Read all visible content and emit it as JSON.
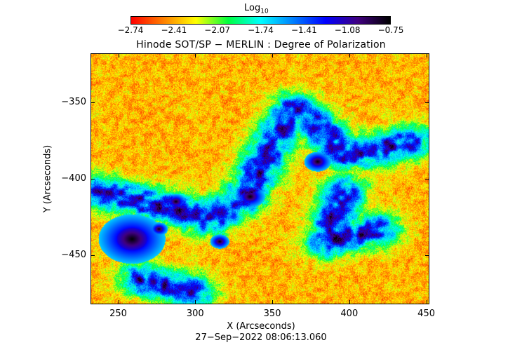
{
  "colorbar": {
    "title": "Log",
    "title_sub": "10",
    "ticks": [
      "-2.74",
      "-2.41",
      "-2.07",
      "-1.74",
      "-1.41",
      "-1.08",
      "-0.75"
    ],
    "colors": [
      "#ff0000",
      "#ff8000",
      "#ffff00",
      "#00ff40",
      "#00ffff",
      "#0080ff",
      "#0000ff",
      "#400080",
      "#000000"
    ]
  },
  "title": "Hinode SOT/SP − MERLIN : Degree of Polarization",
  "axes": {
    "xlabel": "X (Arcseconds)",
    "ylabel": "Y (Arcseconds)",
    "xticks": [
      "250",
      "300",
      "350",
      "400",
      "450"
    ],
    "yticks": [
      "−350",
      "−400",
      "−450"
    ]
  },
  "timestamp": "27−Sep−2022 08:06:13.060",
  "chart_data": {
    "type": "heatmap",
    "x_range": [
      232,
      452
    ],
    "y_range": [
      -482,
      -318
    ],
    "value_range": [
      -2.74,
      -0.75
    ],
    "xticks": [
      250,
      300,
      350,
      400,
      450
    ],
    "yticks": [
      -350,
      -400,
      -450
    ]
  }
}
